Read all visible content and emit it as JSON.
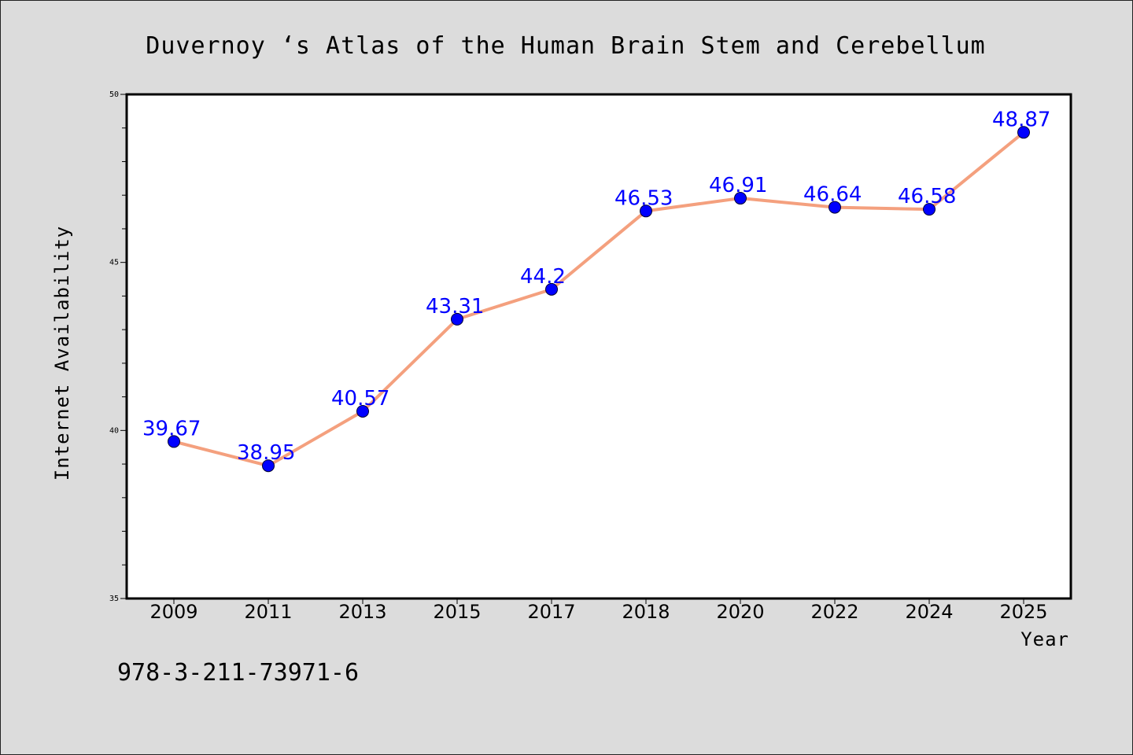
{
  "chart_data": {
    "type": "line",
    "title": "Duvernoy ‘s Atlas of the Human Brain Stem and Cerebellum",
    "xlabel": "Year",
    "ylabel": "Internet Availability",
    "categories": [
      "2009",
      "2011",
      "2013",
      "2015",
      "2017",
      "2018",
      "2020",
      "2022",
      "2024",
      "2025"
    ],
    "series": [
      {
        "values": [
          39.67,
          38.95,
          40.57,
          43.31,
          44.2,
          46.53,
          46.91,
          46.64,
          46.58,
          48.87
        ],
        "labels": [
          "39.67",
          "38.95",
          "40.57",
          "43.31",
          "44.2",
          "46.53",
          "46.91",
          "46.64",
          "46.58",
          "48.87"
        ]
      }
    ],
    "ylim": [
      35,
      50
    ],
    "yticks": [
      35,
      40,
      45,
      50
    ],
    "ytick_labels": [
      "35",
      "40",
      "45",
      "50"
    ],
    "grid": false,
    "line_color": "#f4a07e",
    "marker_color": "#0000ff",
    "label_color": "#0000ff"
  },
  "footer": {
    "isbn": "978-3-211-73971-6"
  }
}
